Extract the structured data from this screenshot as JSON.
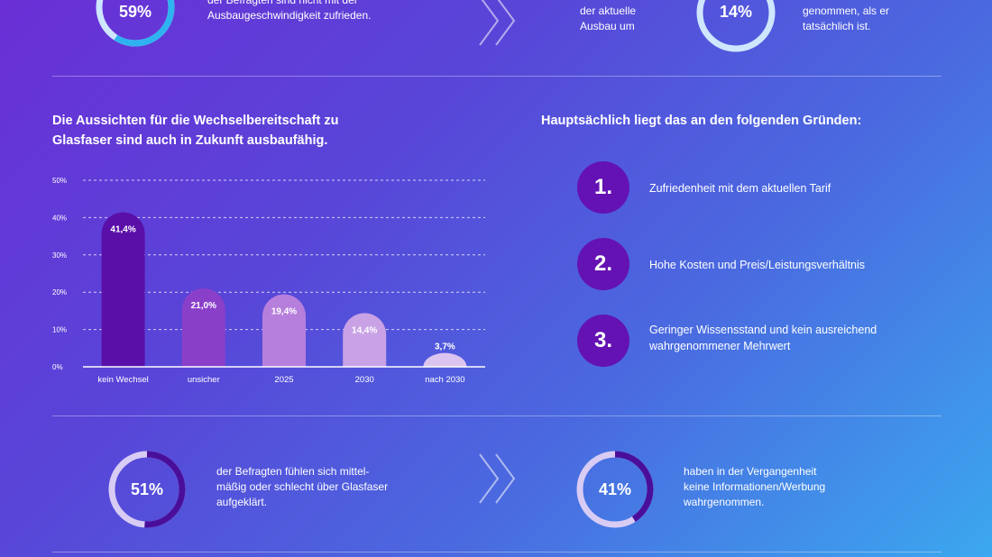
{
  "top_row": {
    "left_stat": {
      "value": "59%",
      "percent": 59,
      "text": "der Befragten sind nicht mit der\nAusbaugeschwindigkeit zufrieden."
    },
    "right_stat": {
      "value": "14%",
      "percent": 14,
      "text_left": "der aktuelle\nAusbau um",
      "text_right": "genommen, als er\ntatsächlich ist."
    }
  },
  "section": {
    "chart_heading": "Die Aussichten für die Wechselbereitschaft zu\nGlasfaser sind auch in Zukunft ausbaufähig.",
    "reasons_heading": "Hauptsächlich liegt das an den folgenden Gründen:"
  },
  "reasons": [
    {
      "num": "1.",
      "text": "Zufriedenheit mit dem aktuellen Tarif"
    },
    {
      "num": "2.",
      "text": "Hohe Kosten und Preis/Leistungsverhältnis"
    },
    {
      "num": "3.",
      "text": "Geringer Wissensstand und kein ausreichend\nwahrgenommener Mehrwert"
    }
  ],
  "bottom_row": {
    "left_stat": {
      "value": "51%",
      "percent": 51,
      "text": "der Befragten fühlen sich mittel-\nmäßig oder schlecht über Glasfaser\naufgeklärt."
    },
    "right_stat": {
      "value": "41%",
      "percent": 41,
      "text": "haben in der Vergangenheit\nkeine Informationen/Werbung\nwahrgenommen."
    }
  },
  "colors": {
    "bar_dark": "#5a0fa8",
    "bar_mid": "#8a3fc9",
    "bar_light": "#b77fdc",
    "bar_lighter": "#c9a2e6",
    "bar_lightest": "#dcc4f0",
    "ring_track": "#d8ccf5",
    "ring_dark": "#4a0f9a"
  },
  "chart_data": {
    "type": "bar",
    "categories": [
      "kein Wechsel",
      "unsicher",
      "2025",
      "2030",
      "nach 2030"
    ],
    "values": [
      41.4,
      21.0,
      19.4,
      14.4,
      3.7
    ],
    "value_labels": [
      "41,4%",
      "21,0%",
      "19,4%",
      "14,4%",
      "3,7%"
    ],
    "ylim": [
      0,
      50
    ],
    "yticks": [
      0,
      10,
      20,
      30,
      40,
      50
    ],
    "ytick_labels": [
      "0%",
      "10%",
      "20%",
      "30%",
      "40%",
      "50%"
    ],
    "grid": true,
    "title": "",
    "xlabel": "",
    "ylabel": ""
  }
}
